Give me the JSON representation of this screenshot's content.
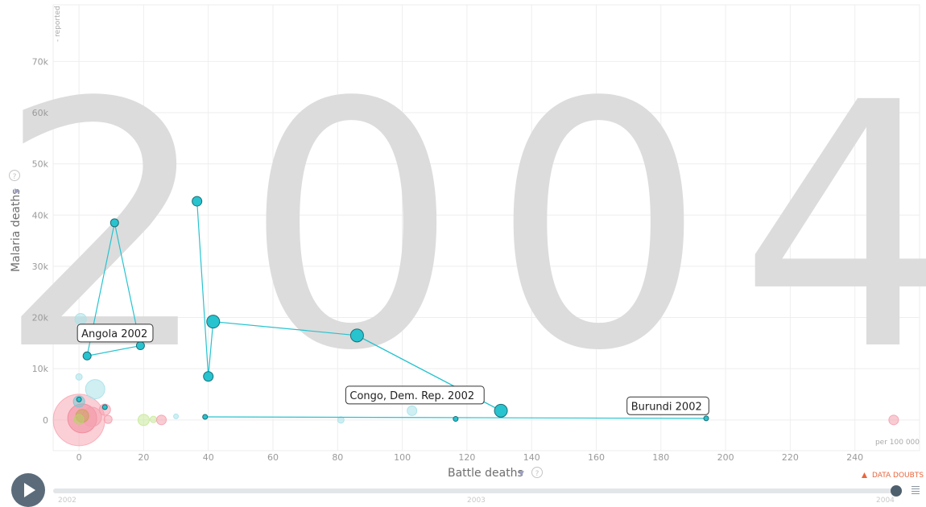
{
  "year_watermark": "2004",
  "axes": {
    "x_title": "Battle deaths",
    "y_title": "Malaria deaths",
    "y_corner_note": "- reported",
    "x_unit_note": "per 100 000",
    "x_ticks": [
      "0",
      "20",
      "40",
      "60",
      "80",
      "100",
      "120",
      "140",
      "160",
      "180",
      "200",
      "220",
      "240"
    ],
    "y_ticks": [
      "0",
      "10k",
      "20k",
      "30k",
      "40k",
      "50k",
      "60k",
      "70k"
    ]
  },
  "data_doubts": "DATA DOUBTS",
  "timeline": {
    "years": [
      "2002",
      "2003",
      "2004"
    ],
    "current_year": "2004",
    "progress": 1.0
  },
  "chart_data": {
    "type": "scatter",
    "title": "",
    "xlabel": "Battle deaths",
    "ylabel": "Malaria deaths",
    "xlim": [
      -8,
      260
    ],
    "ylim": [
      -6000,
      82000
    ],
    "trails": [
      {
        "label": "Angola 2002",
        "color": "#27c3cf",
        "points": [
          [
            2.5,
            12500
          ],
          [
            11,
            38500
          ],
          [
            19,
            14500
          ]
        ]
      },
      {
        "label": "",
        "color": "#27c3cf",
        "points": [
          [
            36.5,
            42700
          ],
          [
            40,
            8500
          ],
          [
            41.5,
            19200
          ],
          [
            86,
            16500
          ],
          [
            130.5,
            1800
          ]
        ]
      },
      {
        "label": "Congo, Dem. Rep. 2002",
        "color": "#27c3cf",
        "points": [
          [
            116.5,
            200
          ]
        ]
      },
      {
        "label": "Burundi 2002",
        "color": "#27c3cf",
        "points": [
          [
            39,
            600
          ],
          [
            194,
            300
          ]
        ]
      }
    ],
    "bubbles": [
      {
        "x": 0,
        "y": 0,
        "r": 32,
        "color": "#f7a8b4"
      },
      {
        "x": 1,
        "y": 300,
        "r": 18,
        "color": "#f08a9c"
      },
      {
        "x": 4,
        "y": 600,
        "r": 12,
        "color": "#f4a0ae"
      },
      {
        "x": 5,
        "y": 6000,
        "r": 12,
        "color": "#a8e2ea"
      },
      {
        "x": 0.5,
        "y": 19700,
        "r": 7,
        "color": "#a8e2ea"
      },
      {
        "x": 0,
        "y": 8400,
        "r": 4,
        "color": "#a8e2ea"
      },
      {
        "x": 0,
        "y": 3600,
        "r": 7,
        "color": "#7ac7d4"
      },
      {
        "x": 1,
        "y": 800,
        "r": 8,
        "color": "#c9a25c"
      },
      {
        "x": 0,
        "y": 100,
        "r": 6,
        "color": "#b9d36a"
      },
      {
        "x": 8,
        "y": 2000,
        "r": 7,
        "color": "#f4a0ae"
      },
      {
        "x": 9,
        "y": 100,
        "r": 5,
        "color": "#f4a0ae"
      },
      {
        "x": 20,
        "y": 0,
        "r": 7,
        "color": "#c8e99a"
      },
      {
        "x": 23,
        "y": 100,
        "r": 4,
        "color": "#c8e99a"
      },
      {
        "x": 25.5,
        "y": 0,
        "r": 6,
        "color": "#f4a0ae"
      },
      {
        "x": 30,
        "y": 700,
        "r": 3,
        "color": "#a8e2ea"
      },
      {
        "x": 81,
        "y": 0,
        "r": 4,
        "color": "#a8e2ea"
      },
      {
        "x": 103,
        "y": 1800,
        "r": 6,
        "color": "#a8e2ea"
      },
      {
        "x": 252,
        "y": 0,
        "r": 6,
        "color": "#f4a0ae"
      }
    ],
    "current_points": [
      {
        "x": 2.5,
        "y": 12500,
        "r": 5
      },
      {
        "x": 11,
        "y": 38500,
        "r": 5
      },
      {
        "x": 19,
        "y": 14500,
        "r": 5
      },
      {
        "x": 36.5,
        "y": 42700,
        "r": 6
      },
      {
        "x": 40,
        "y": 8500,
        "r": 6
      },
      {
        "x": 41.5,
        "y": 19200,
        "r": 8
      },
      {
        "x": 86,
        "y": 16500,
        "r": 8
      },
      {
        "x": 130.5,
        "y": 1800,
        "r": 8
      },
      {
        "x": 116.5,
        "y": 200,
        "r": 3
      },
      {
        "x": 39,
        "y": 600,
        "r": 3
      },
      {
        "x": 194,
        "y": 300,
        "r": 3
      },
      {
        "x": 8,
        "y": 2500,
        "r": 3
      },
      {
        "x": 0,
        "y": 4000,
        "r": 3
      }
    ]
  }
}
